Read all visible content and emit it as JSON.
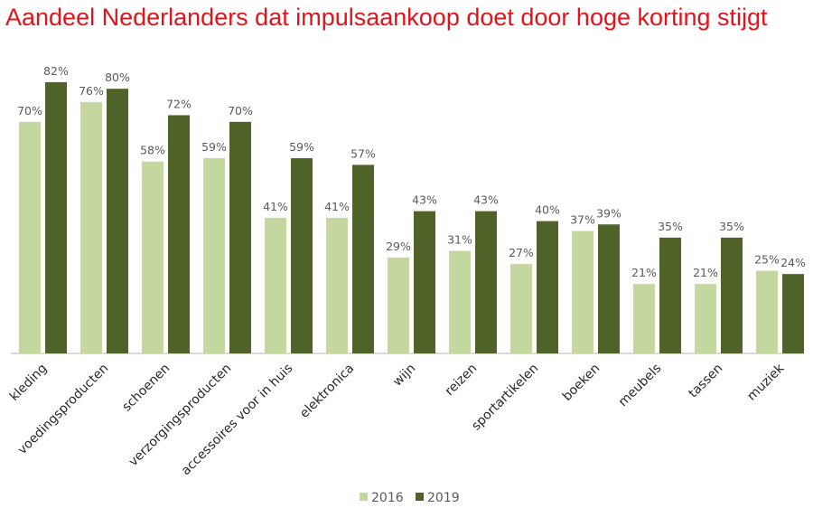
{
  "chart_data": {
    "type": "bar",
    "title": "Aandeel Nederlanders dat impulsaankoop doet door hoge korting stijgt",
    "categories": [
      "kleding",
      "voedingsproducten",
      "schoenen",
      "verzorgingsproducten",
      "accessoires voor in huis",
      "elektronica",
      "wijn",
      "reizen",
      "sportartikelen",
      "boeken",
      "meubels",
      "tassen",
      "muziek"
    ],
    "series": [
      {
        "name": "2016",
        "color": "#c4d79e",
        "values": [
          70,
          76,
          58,
          59,
          41,
          41,
          29,
          31,
          27,
          37,
          21,
          21,
          25
        ]
      },
      {
        "name": "2019",
        "color": "#4f6228",
        "values": [
          82,
          80,
          72,
          70,
          59,
          57,
          43,
          43,
          40,
          39,
          35,
          35,
          24
        ]
      }
    ],
    "value_suffix": "%",
    "ylim": [
      0,
      82
    ],
    "grid": false,
    "legend": "bottom"
  }
}
